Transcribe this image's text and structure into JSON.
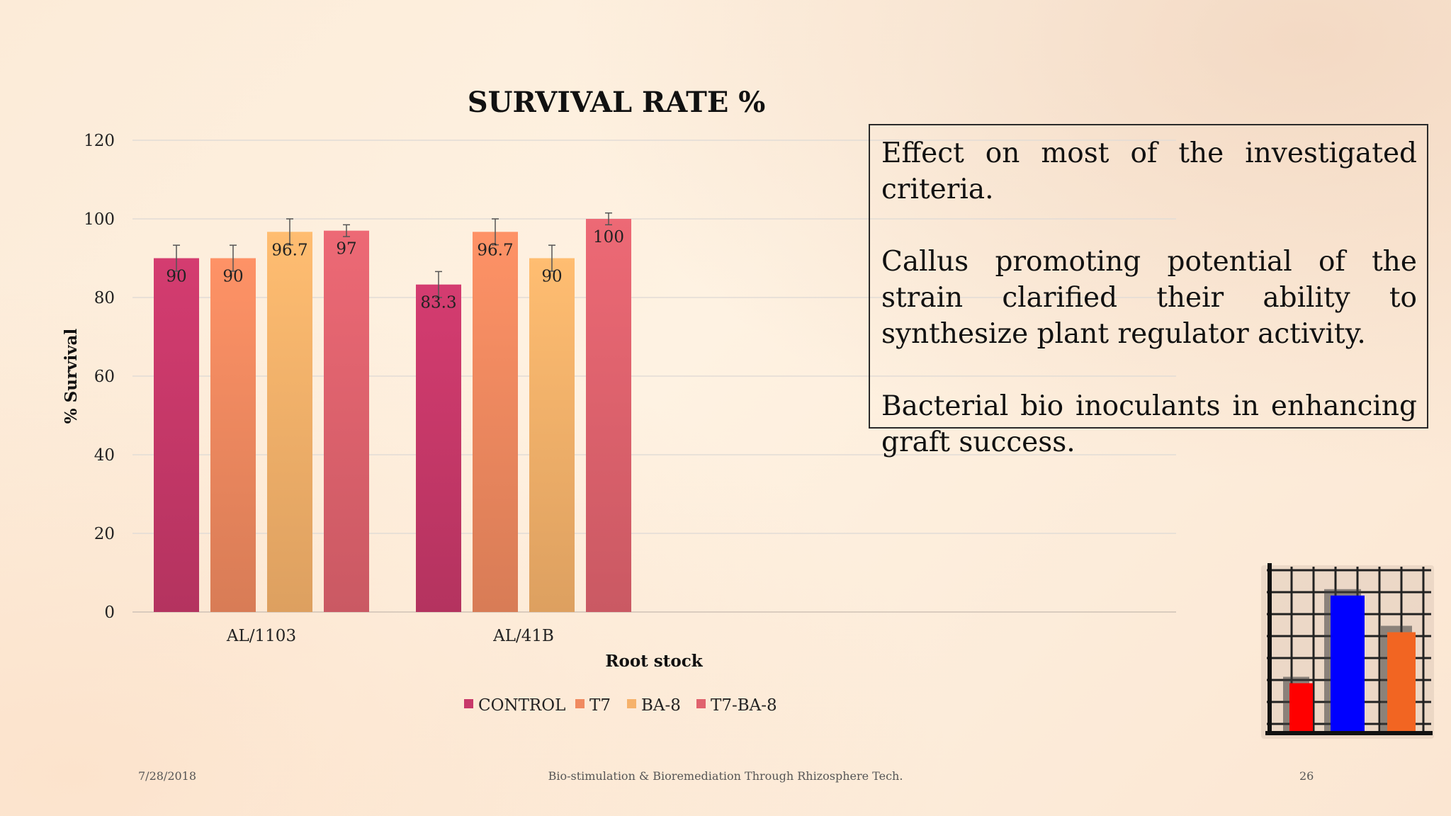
{
  "chart_data": {
    "type": "bar",
    "title": "SURVIVAL RATE %",
    "xlabel": "Root stock",
    "ylabel": "% Survival",
    "ylim": [
      0,
      120
    ],
    "yticks": [
      0,
      20,
      40,
      60,
      80,
      100,
      120
    ],
    "grid": true,
    "legend_position": "bottom",
    "categories": [
      "AL/1103",
      "AL/41B"
    ],
    "series": [
      {
        "name": "CONTROL",
        "values": [
          90,
          83.3
        ],
        "error": [
          3.3,
          3.3
        ],
        "color": "#c8396a"
      },
      {
        "name": "T7",
        "values": [
          90,
          96.7
        ],
        "error": [
          3.3,
          3.3
        ],
        "color": "#f08a60"
      },
      {
        "name": "BA-8",
        "values": [
          96.7,
          90
        ],
        "error": [
          3.3,
          3.3
        ],
        "color": "#f6b26b"
      },
      {
        "name": "T7-BA-8",
        "values": [
          97,
          100
        ],
        "error": [
          1.5,
          1.5
        ],
        "color": "#e0636e"
      }
    ]
  },
  "text_box": {
    "paragraphs": [
      "Effect on most of the investigated criteria.",
      "Callus promoting potential of the strain clarified their ability to synthesize plant regulator activity.",
      "Bacterial bio inoculants in enhancing graft success."
    ]
  },
  "footer": {
    "date": "7/28/2018",
    "title": "Bio-stimulation & Bioremediation Through Rhizosphere Tech.",
    "page": "26"
  },
  "clipart": {
    "icon": "bar-chart-clipart-icon",
    "colors": [
      "#ff0000",
      "#0000ff",
      "#f26522"
    ],
    "values": [
      0.3,
      0.85,
      0.62
    ]
  }
}
